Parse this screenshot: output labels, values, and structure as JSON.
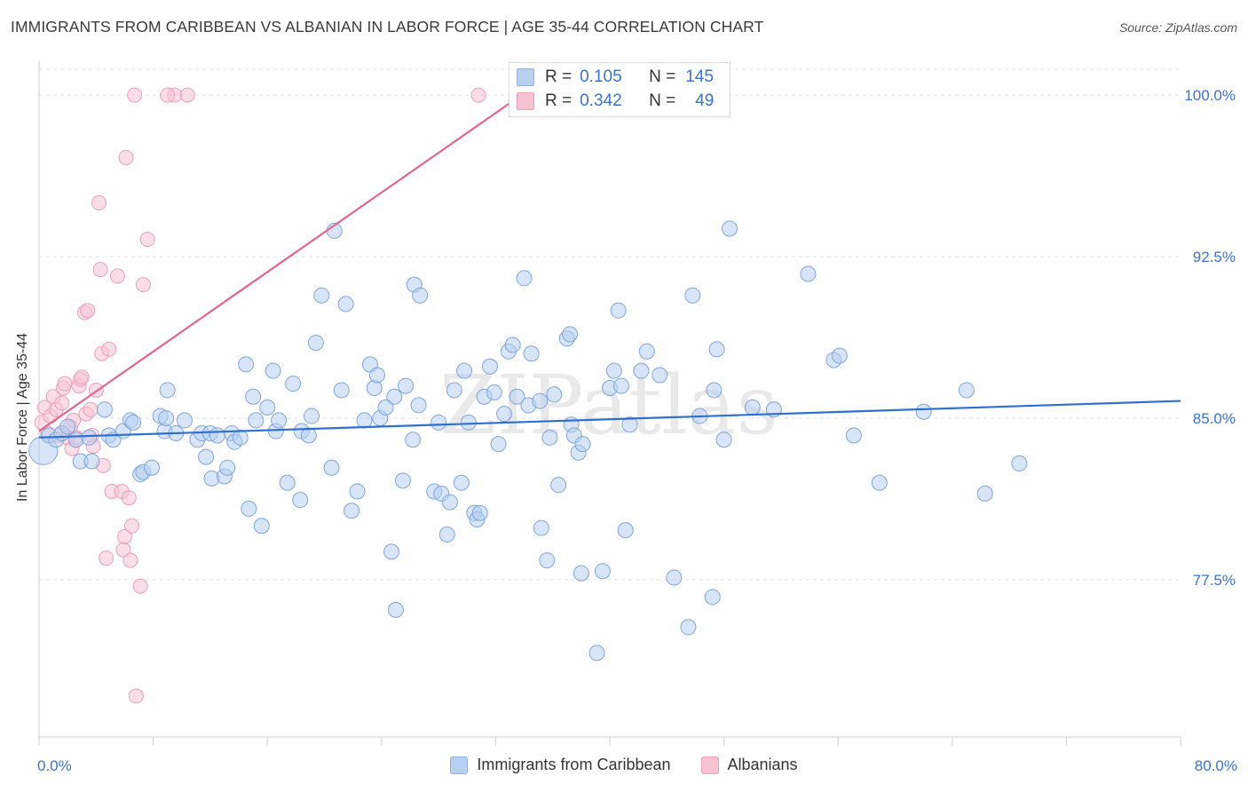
{
  "header": {
    "title": "IMMIGRANTS FROM CARIBBEAN VS ALBANIAN IN LABOR FORCE | AGE 35-44 CORRELATION CHART",
    "source": "Source: ZipAtlas.com"
  },
  "colors": {
    "blue": "#3b73c9",
    "blue_fill": "#b8d0f0",
    "blue_line": "#2f6fd0",
    "pink_fill": "#f6c3d3",
    "pink_line": "#e06690",
    "grid": "#e3e3e3"
  },
  "legend": {
    "rows": [
      {
        "r_label": "R =",
        "r_value": "0.105",
        "n_label": "N =",
        "n_value": "145"
      },
      {
        "r_label": "R =",
        "r_value": "0.342",
        "n_label": "N =",
        "n_value": "49"
      }
    ]
  },
  "bottom_legend": {
    "items": [
      {
        "label": "Immigrants from Caribbean"
      },
      {
        "label": "Albanians"
      }
    ]
  },
  "watermark": "ZIPatlas",
  "chart_data": {
    "type": "scatter",
    "title": "IMMIGRANTS FROM CARIBBEAN VS ALBANIAN IN LABOR FORCE | AGE 35-44 CORRELATION CHART",
    "xlabel": "",
    "ylabel": "In Labor Force | Age 35-44",
    "xlim": [
      0,
      80
    ],
    "ylim": [
      70.2,
      101.2
    ],
    "x_tick_labels": {
      "left": "0.0%",
      "right": "80.0%"
    },
    "y_ticks": [
      {
        "value": 100.0,
        "label": "100.0%"
      },
      {
        "value": 92.5,
        "label": "92.5%"
      },
      {
        "value": 85.0,
        "label": "85.0%"
      },
      {
        "value": 77.5,
        "label": "77.5%"
      }
    ],
    "legend_position": "top-center",
    "series": [
      {
        "name": "Immigrants from Caribbean",
        "color": "#3b73c9",
        "R": 0.105,
        "N": 145,
        "trend": {
          "x0": 0.0,
          "y0": 84.1,
          "x1": 80.0,
          "y1": 85.8
        },
        "points": [
          [
            0.3,
            83.5
          ],
          [
            0.7,
            84.2
          ],
          [
            1.2,
            84.0
          ],
          [
            1.6,
            84.3
          ],
          [
            2.0,
            84.6
          ],
          [
            2.6,
            84.0
          ],
          [
            2.9,
            83.0
          ],
          [
            3.5,
            84.1
          ],
          [
            3.7,
            83.0
          ],
          [
            4.6,
            85.4
          ],
          [
            4.9,
            84.2
          ],
          [
            5.2,
            84.0
          ],
          [
            5.9,
            84.4
          ],
          [
            6.4,
            84.9
          ],
          [
            6.6,
            84.8
          ],
          [
            7.1,
            82.4
          ],
          [
            7.3,
            82.5
          ],
          [
            7.9,
            82.7
          ],
          [
            8.5,
            85.1
          ],
          [
            8.8,
            84.4
          ],
          [
            8.9,
            85.0
          ],
          [
            9.0,
            86.3
          ],
          [
            9.6,
            84.3
          ],
          [
            10.2,
            84.9
          ],
          [
            11.1,
            84.0
          ],
          [
            11.4,
            84.3
          ],
          [
            11.7,
            83.2
          ],
          [
            12.0,
            84.3
          ],
          [
            12.1,
            82.2
          ],
          [
            12.5,
            84.2
          ],
          [
            13.0,
            82.3
          ],
          [
            13.2,
            82.7
          ],
          [
            13.5,
            84.3
          ],
          [
            13.7,
            83.9
          ],
          [
            14.1,
            84.1
          ],
          [
            14.5,
            87.5
          ],
          [
            14.7,
            80.8
          ],
          [
            15.0,
            86.0
          ],
          [
            15.2,
            84.9
          ],
          [
            15.6,
            80.0
          ],
          [
            16.0,
            85.5
          ],
          [
            16.4,
            87.2
          ],
          [
            16.6,
            84.4
          ],
          [
            16.8,
            84.9
          ],
          [
            17.4,
            82.0
          ],
          [
            17.8,
            86.6
          ],
          [
            18.3,
            81.2
          ],
          [
            18.4,
            84.4
          ],
          [
            18.9,
            84.2
          ],
          [
            19.1,
            85.1
          ],
          [
            19.4,
            88.5
          ],
          [
            19.8,
            90.7
          ],
          [
            20.5,
            82.7
          ],
          [
            20.7,
            93.7
          ],
          [
            21.2,
            86.3
          ],
          [
            21.5,
            90.3
          ],
          [
            21.9,
            80.7
          ],
          [
            22.3,
            81.6
          ],
          [
            22.8,
            84.9
          ],
          [
            23.2,
            87.5
          ],
          [
            23.5,
            86.4
          ],
          [
            23.7,
            87.0
          ],
          [
            23.9,
            85.0
          ],
          [
            24.3,
            85.5
          ],
          [
            24.7,
            78.8
          ],
          [
            24.9,
            86.0
          ],
          [
            25.0,
            76.1
          ],
          [
            25.5,
            82.1
          ],
          [
            25.7,
            86.5
          ],
          [
            26.2,
            84.0
          ],
          [
            26.3,
            91.2
          ],
          [
            26.6,
            85.6
          ],
          [
            26.7,
            90.7
          ],
          [
            27.7,
            81.6
          ],
          [
            28.0,
            84.8
          ],
          [
            28.2,
            81.5
          ],
          [
            28.6,
            79.6
          ],
          [
            28.8,
            81.1
          ],
          [
            29.1,
            86.3
          ],
          [
            29.6,
            82.0
          ],
          [
            29.8,
            87.2
          ],
          [
            30.1,
            84.8
          ],
          [
            30.5,
            80.6
          ],
          [
            30.7,
            80.3
          ],
          [
            30.9,
            80.6
          ],
          [
            31.2,
            86.0
          ],
          [
            31.6,
            87.4
          ],
          [
            31.9,
            86.2
          ],
          [
            32.2,
            83.8
          ],
          [
            32.6,
            85.2
          ],
          [
            32.9,
            88.1
          ],
          [
            33.2,
            88.4
          ],
          [
            33.5,
            86.0
          ],
          [
            34.0,
            91.5
          ],
          [
            34.3,
            85.6
          ],
          [
            34.5,
            88.0
          ],
          [
            35.1,
            85.8
          ],
          [
            35.2,
            79.9
          ],
          [
            35.6,
            78.4
          ],
          [
            35.8,
            84.1
          ],
          [
            36.1,
            86.1
          ],
          [
            37.0,
            88.7
          ],
          [
            37.2,
            88.9
          ],
          [
            37.3,
            84.7
          ],
          [
            37.5,
            84.2
          ],
          [
            37.8,
            83.4
          ],
          [
            38.0,
            77.8
          ],
          [
            38.1,
            83.8
          ],
          [
            39.5,
            77.9
          ],
          [
            40.0,
            86.4
          ],
          [
            40.3,
            87.2
          ],
          [
            40.6,
            90.0
          ],
          [
            40.8,
            86.5
          ],
          [
            41.1,
            79.8
          ],
          [
            41.4,
            84.7
          ],
          [
            42.2,
            87.2
          ],
          [
            42.6,
            88.1
          ],
          [
            43.5,
            87.0
          ],
          [
            44.5,
            77.6
          ],
          [
            45.5,
            75.3
          ],
          [
            45.8,
            90.7
          ],
          [
            46.3,
            85.1
          ],
          [
            47.3,
            86.3
          ],
          [
            47.5,
            88.2
          ],
          [
            48.0,
            84.0
          ],
          [
            48.4,
            93.8
          ],
          [
            50.0,
            85.5
          ],
          [
            51.5,
            85.4
          ],
          [
            53.9,
            91.7
          ],
          [
            55.7,
            87.7
          ],
          [
            56.1,
            87.9
          ],
          [
            57.1,
            84.2
          ],
          [
            58.9,
            82.0
          ],
          [
            62.0,
            85.3
          ],
          [
            65.0,
            86.3
          ],
          [
            66.3,
            81.5
          ],
          [
            68.7,
            82.9
          ],
          [
            39.1,
            74.1
          ],
          [
            47.2,
            76.7
          ],
          [
            36.4,
            81.9
          ]
        ]
      },
      {
        "name": "Albanians",
        "color": "#e06690",
        "R": 0.342,
        "N": 49,
        "trend": {
          "x0": 0.0,
          "y0": 84.4,
          "x1": 33.8,
          "y1": 100.0
        },
        "points": [
          [
            0.2,
            84.8
          ],
          [
            0.4,
            85.5
          ],
          [
            0.6,
            84.3
          ],
          [
            0.8,
            85.1
          ],
          [
            1.0,
            86.0
          ],
          [
            1.2,
            85.4
          ],
          [
            1.4,
            84.2
          ],
          [
            1.6,
            85.7
          ],
          [
            1.7,
            86.4
          ],
          [
            1.8,
            86.6
          ],
          [
            2.0,
            84.1
          ],
          [
            2.2,
            84.6
          ],
          [
            2.3,
            83.6
          ],
          [
            2.4,
            84.9
          ],
          [
            2.6,
            84.1
          ],
          [
            2.8,
            86.5
          ],
          [
            2.9,
            86.8
          ],
          [
            3.0,
            86.9
          ],
          [
            3.2,
            89.9
          ],
          [
            3.3,
            85.2
          ],
          [
            3.4,
            90.0
          ],
          [
            3.6,
            85.4
          ],
          [
            3.7,
            84.2
          ],
          [
            3.8,
            83.7
          ],
          [
            4.0,
            86.3
          ],
          [
            4.2,
            95.0
          ],
          [
            4.3,
            91.9
          ],
          [
            4.4,
            88.0
          ],
          [
            4.5,
            82.8
          ],
          [
            4.7,
            78.5
          ],
          [
            4.9,
            88.2
          ],
          [
            5.1,
            81.6
          ],
          [
            5.5,
            91.6
          ],
          [
            5.8,
            81.6
          ],
          [
            5.9,
            78.9
          ],
          [
            6.0,
            79.5
          ],
          [
            6.1,
            97.1
          ],
          [
            6.3,
            81.3
          ],
          [
            6.4,
            78.4
          ],
          [
            6.5,
            80.0
          ],
          [
            6.7,
            100.0
          ],
          [
            7.1,
            77.2
          ],
          [
            7.3,
            91.2
          ],
          [
            7.6,
            93.3
          ],
          [
            9.5,
            100.0
          ],
          [
            9.0,
            100.0
          ],
          [
            10.4,
            100.0
          ],
          [
            6.8,
            72.1
          ],
          [
            30.8,
            100.0
          ]
        ]
      }
    ]
  }
}
